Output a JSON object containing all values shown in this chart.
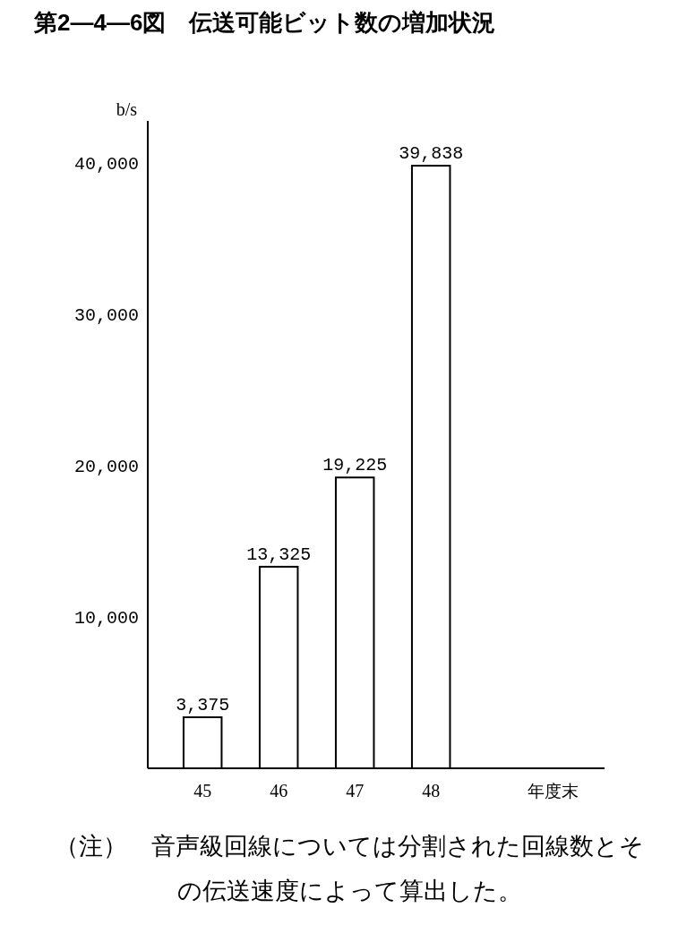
{
  "chart_data": {
    "type": "bar",
    "title": "第2—4—6図　伝送可能ビット数の増加状況",
    "ylabel": "b/s",
    "xlabel": "年度末",
    "categories": [
      "45",
      "46",
      "47",
      "48"
    ],
    "values": [
      3375,
      13325,
      19225,
      39838
    ],
    "value_labels": [
      "3,375",
      "13,325",
      "19,225",
      "39,838"
    ],
    "color": "#ffffff",
    "ylim": [
      0,
      42800
    ],
    "yticks": [
      {
        "value": 10000,
        "label": "10,000"
      },
      {
        "value": 20000,
        "label": "20,000"
      },
      {
        "value": 30000,
        "label": "30,000"
      },
      {
        "value": 40000,
        "label": "40,000"
      }
    ],
    "grid": false,
    "annotations": [
      "（注）　音声級回線については分割された回線数とその伝送速度によって算出した。"
    ]
  }
}
